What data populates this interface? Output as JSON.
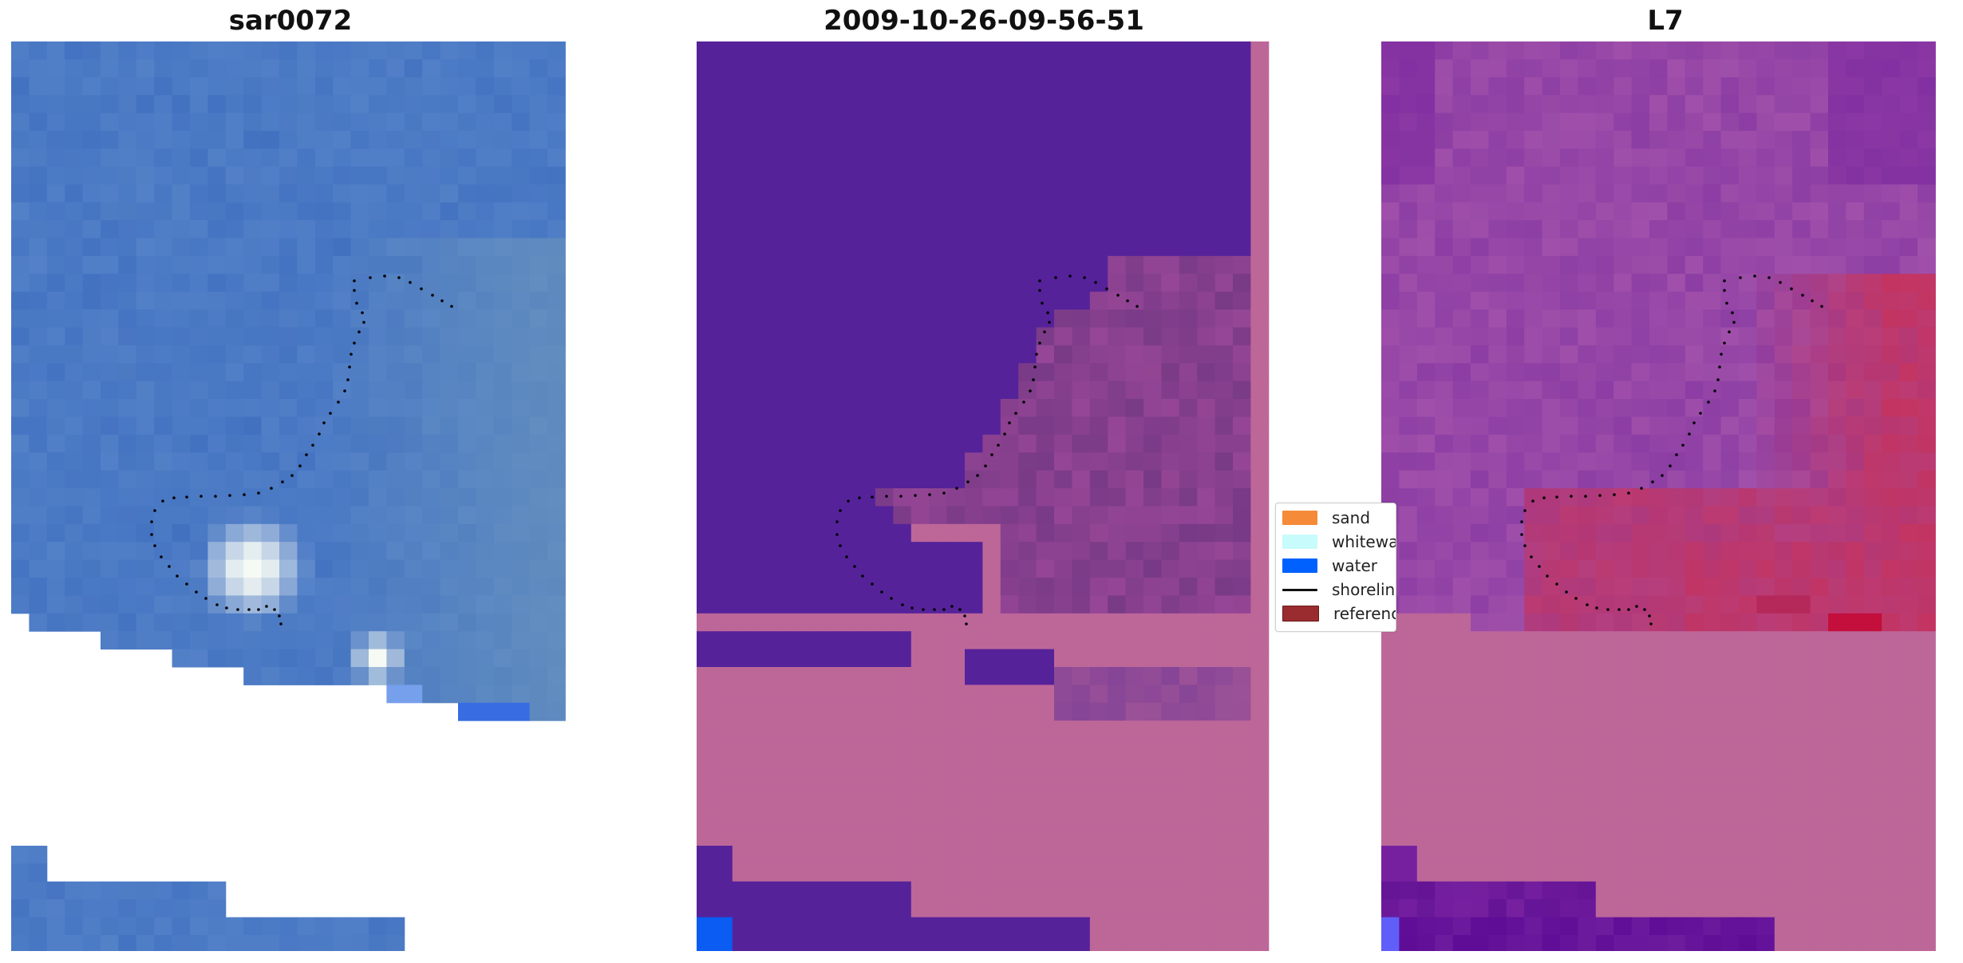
{
  "panels": [
    {
      "title": "sar0072"
    },
    {
      "title": "2009-10-26-09-56-51"
    },
    {
      "title": "L7"
    }
  ],
  "legend": {
    "items": [
      {
        "label": "sand",
        "color": "#f58b38",
        "kind": "patch"
      },
      {
        "label": "whitewater",
        "color": "#c8fbfb",
        "kind": "patch"
      },
      {
        "label": "water",
        "color": "#0061ff",
        "kind": "patch"
      },
      {
        "label": "shoreline",
        "color": "#000000",
        "kind": "line"
      },
      {
        "label": "reference",
        "color": "#9a2b2e",
        "kind": "patch"
      }
    ]
  },
  "colors": {
    "rgb_blue": "#4d7ec6",
    "classified_water": "#55219a",
    "classified_sand_overlay": "#bd6799",
    "classified_white": "#bc6a9e",
    "mndwi_purple": "#8c3fa4",
    "mndwi_red": "#c2325f"
  }
}
